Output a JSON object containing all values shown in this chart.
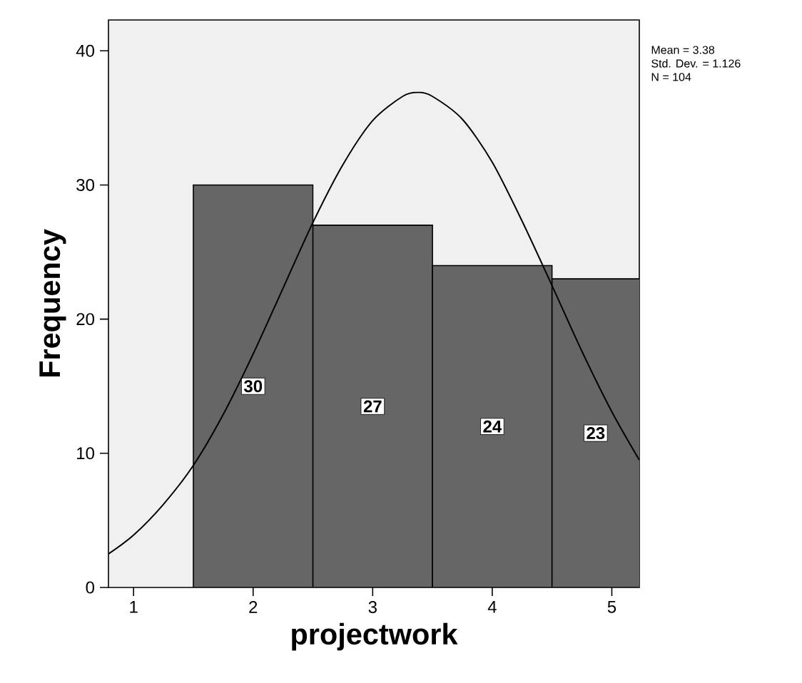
{
  "chart_data": {
    "type": "histogram",
    "xlabel": "projectwork",
    "ylabel": "Frequency",
    "bins": [
      1.5,
      2.5,
      3.5,
      4.5,
      5.5
    ],
    "values": [
      30,
      27,
      24,
      23
    ],
    "color": "#666666",
    "value_labels": [
      "30",
      "27",
      "24",
      "23"
    ],
    "xlim": [
      0.79,
      5.23
    ],
    "xticks": [
      1,
      2,
      3,
      4,
      5
    ],
    "ylim": [
      0,
      42.3
    ],
    "yticks": [
      0,
      10,
      20,
      30,
      40
    ],
    "grid": false,
    "series": [
      {
        "type": "line",
        "color": "#000000",
        "x": [
          0.79,
          1.0,
          1.25,
          1.5,
          1.75,
          2.0,
          2.25,
          2.5,
          2.75,
          3.0,
          3.25,
          3.38,
          3.5,
          3.75,
          4.0,
          4.25,
          4.5,
          4.75,
          5.0,
          5.23
        ],
        "values": [
          2.5,
          3.9,
          6.2,
          9.1,
          12.9,
          17.4,
          22.3,
          27.2,
          31.5,
          34.8,
          36.6,
          36.9,
          36.6,
          34.9,
          31.7,
          27.3,
          22.5,
          17.6,
          13.1,
          9.5
        ]
      }
    ],
    "annotations": [
      "Mean = 3.38",
      "Std. Dev. = 1.126",
      "N = 104"
    ]
  }
}
